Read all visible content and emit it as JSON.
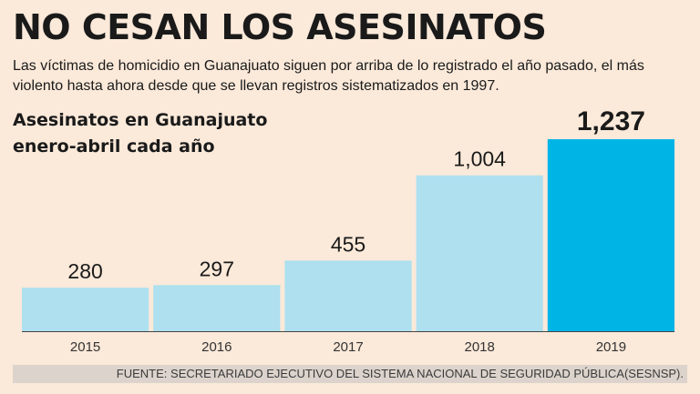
{
  "headline": "NO CESAN LOS ASESINATOS",
  "subtitle": "Las víctimas de homicidio en Guanajuato siguen por arriba de lo registrado el año pasado, el más violento hasta ahora desde que se llevan registros sistematizados en 1997.",
  "source": "FUENTE: SECRETARIADO EJECUTIVO DEL SISTEMA NACIONAL DE SEGURIDAD PÚBLICA(SESNSP).",
  "colors": {
    "background": "#fbe9d9",
    "bar": "#aee0ef",
    "bar_highlight": "#00b5e6",
    "axis": "#444444",
    "source_band": "#dcd4cc"
  },
  "chart_data": {
    "type": "bar",
    "title": "Asesinatos en Guanajuato",
    "subtitle": "enero-abril cada año",
    "categories": [
      "2015",
      "2016",
      "2017",
      "2018",
      "2019"
    ],
    "values": [
      280,
      297,
      455,
      1004,
      1237
    ],
    "value_labels": [
      "280",
      "297",
      "455",
      "1,004",
      "1,237"
    ],
    "highlight_index": 4,
    "xlabel": "",
    "ylabel": "",
    "ylim": [
      0,
      1237
    ],
    "grid": false,
    "legend": "none"
  }
}
